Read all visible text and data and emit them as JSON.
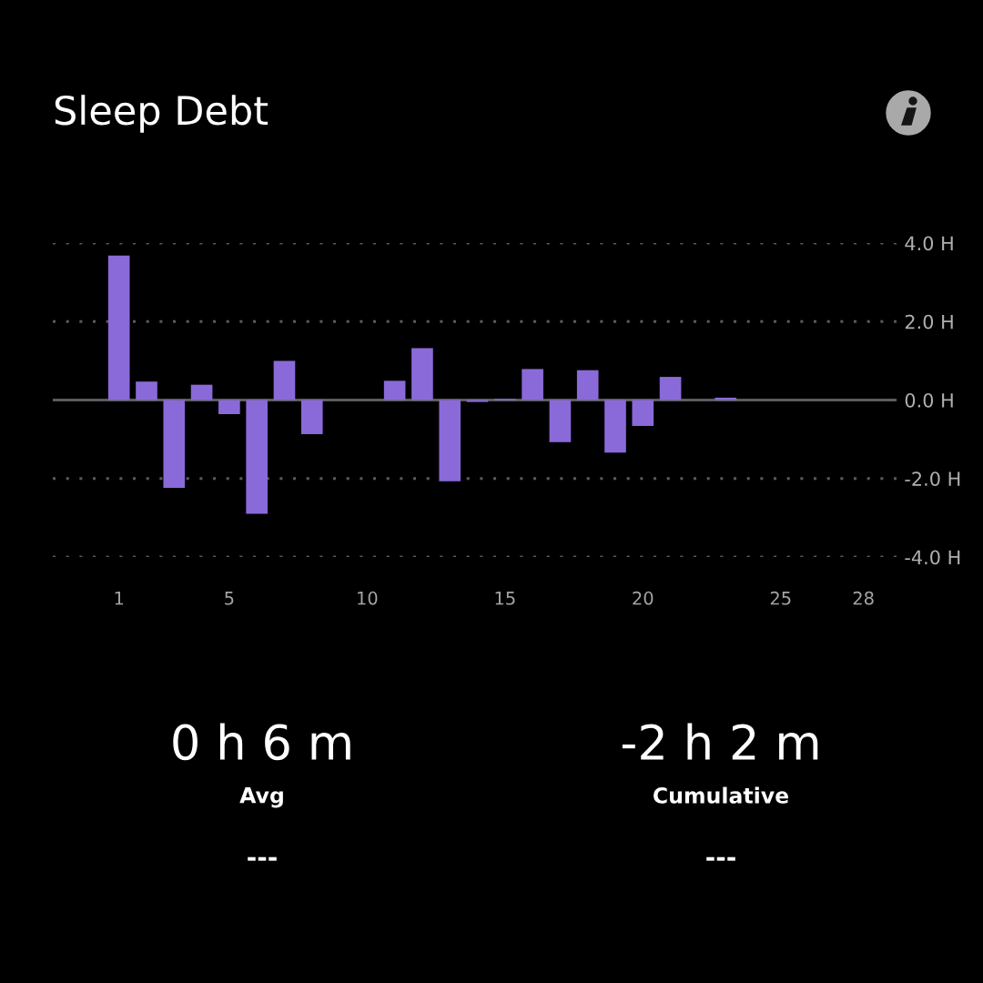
{
  "chart_data": {
    "type": "bar",
    "title": "Sleep Debt",
    "x": [
      1,
      2,
      3,
      4,
      5,
      6,
      7,
      8,
      11,
      12,
      13,
      14,
      15,
      16,
      17,
      18,
      19,
      20,
      21,
      23
    ],
    "values": [
      3.68,
      0.47,
      -2.24,
      0.39,
      -0.36,
      -2.9,
      1.0,
      -0.87,
      0.49,
      1.32,
      -2.07,
      -0.05,
      0.03,
      0.79,
      -1.07,
      0.76,
      -1.34,
      -0.66,
      0.59,
      0.06
    ],
    "color": "#8a6ad8",
    "xlim": [
      -1.4,
      29.2
    ],
    "xticks": [
      1,
      5,
      10,
      15,
      20,
      25,
      28
    ],
    "ylim": [
      -4,
      4
    ],
    "yticks": [
      {
        "value": 4,
        "label": "4.0 H"
      },
      {
        "value": 2,
        "label": "2.0 H"
      },
      {
        "value": 0,
        "label": "0.0 H"
      },
      {
        "value": -2,
        "label": "-2.0 H"
      },
      {
        "value": -4,
        "label": "-4.0 H"
      }
    ],
    "grid": "y",
    "ref_lines": [
      {
        "axis": "y",
        "value": 0,
        "color": "#5c5c60"
      }
    ],
    "annotations": [
      "0 h 6 m",
      "Avg",
      "---",
      "-2 h 2 m",
      "Cumulative",
      "---"
    ]
  }
}
